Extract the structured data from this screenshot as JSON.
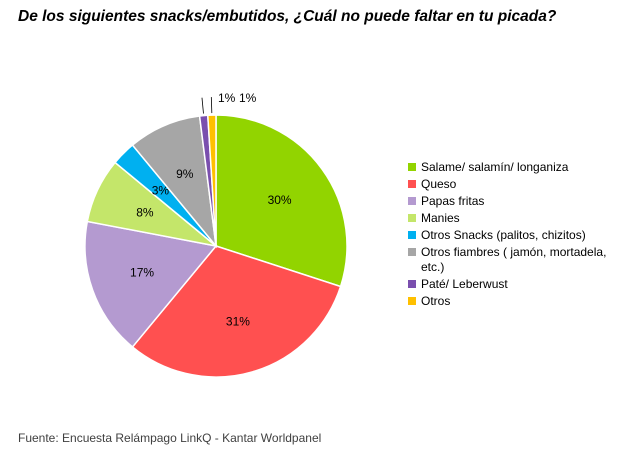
{
  "title": "De los siguientes snacks/embutidos, ¿Cuál no puede faltar en tu picada?",
  "source": "Fuente: Encuesta Relámpago LinkQ - Kantar Worldpanel",
  "chart_data": {
    "type": "pie",
    "title": "De los siguientes snacks/embutidos, ¿Cuál no puede faltar en tu picada?",
    "legend_position": "right",
    "slices": [
      {
        "name": "Salame/ salamín/ longaniza",
        "value": 30,
        "label": "30%",
        "color": "#92d400"
      },
      {
        "name": "Queso",
        "value": 31,
        "label": "31%",
        "color": "#ff5050"
      },
      {
        "name": "Papas fritas",
        "value": 17,
        "label": "17%",
        "color": "#b49ad0"
      },
      {
        "name": "Manies",
        "value": 8,
        "label": "8%",
        "color": "#c4e66a"
      },
      {
        "name": "Otros Snacks (palitos, chizitos)",
        "value": 3,
        "label": "3%",
        "color": "#00b0f0"
      },
      {
        "name": "Otros fiambres ( jamón, mortadela, etc.)",
        "value": 9,
        "label": "9%",
        "color": "#a6a6a6"
      },
      {
        "name": "Paté/ Leberwust",
        "value": 1,
        "label": "1%",
        "color": "#7a4fae"
      },
      {
        "name": "Otros",
        "value": 1,
        "label": "1%",
        "color": "#ffc000"
      }
    ]
  }
}
